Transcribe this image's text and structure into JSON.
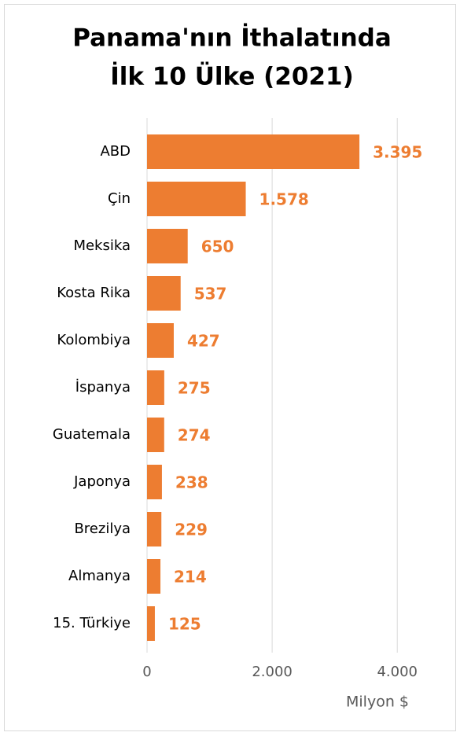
{
  "chart_data": {
    "type": "bar",
    "orientation": "horizontal",
    "title": [
      "Panama'nın İthalatında",
      "İlk 10 Ülke (2021)"
    ],
    "categories": [
      "ABD",
      "Çin",
      "Meksika",
      "Kosta Rika",
      "Kolombiya",
      "İspanya",
      "Guatemala",
      "Japonya",
      "Brezilya",
      "Almanya",
      "15. Türkiye"
    ],
    "values": [
      3395,
      1578,
      650,
      537,
      427,
      275,
      274,
      238,
      229,
      214,
      125
    ],
    "value_labels": [
      "3.395",
      "1.578",
      "650",
      "537",
      "427",
      "275",
      "274",
      "238",
      "229",
      "214",
      "125"
    ],
    "color": "#ED7D31",
    "xlim": [
      0,
      4500
    ],
    "xticks": [
      0,
      {
        "value": 2000,
        "label": "2.000"
      },
      {
        "value": 4000,
        "label": "4.000"
      }
    ],
    "xlabel": "Milyon $",
    "grid": true
  }
}
